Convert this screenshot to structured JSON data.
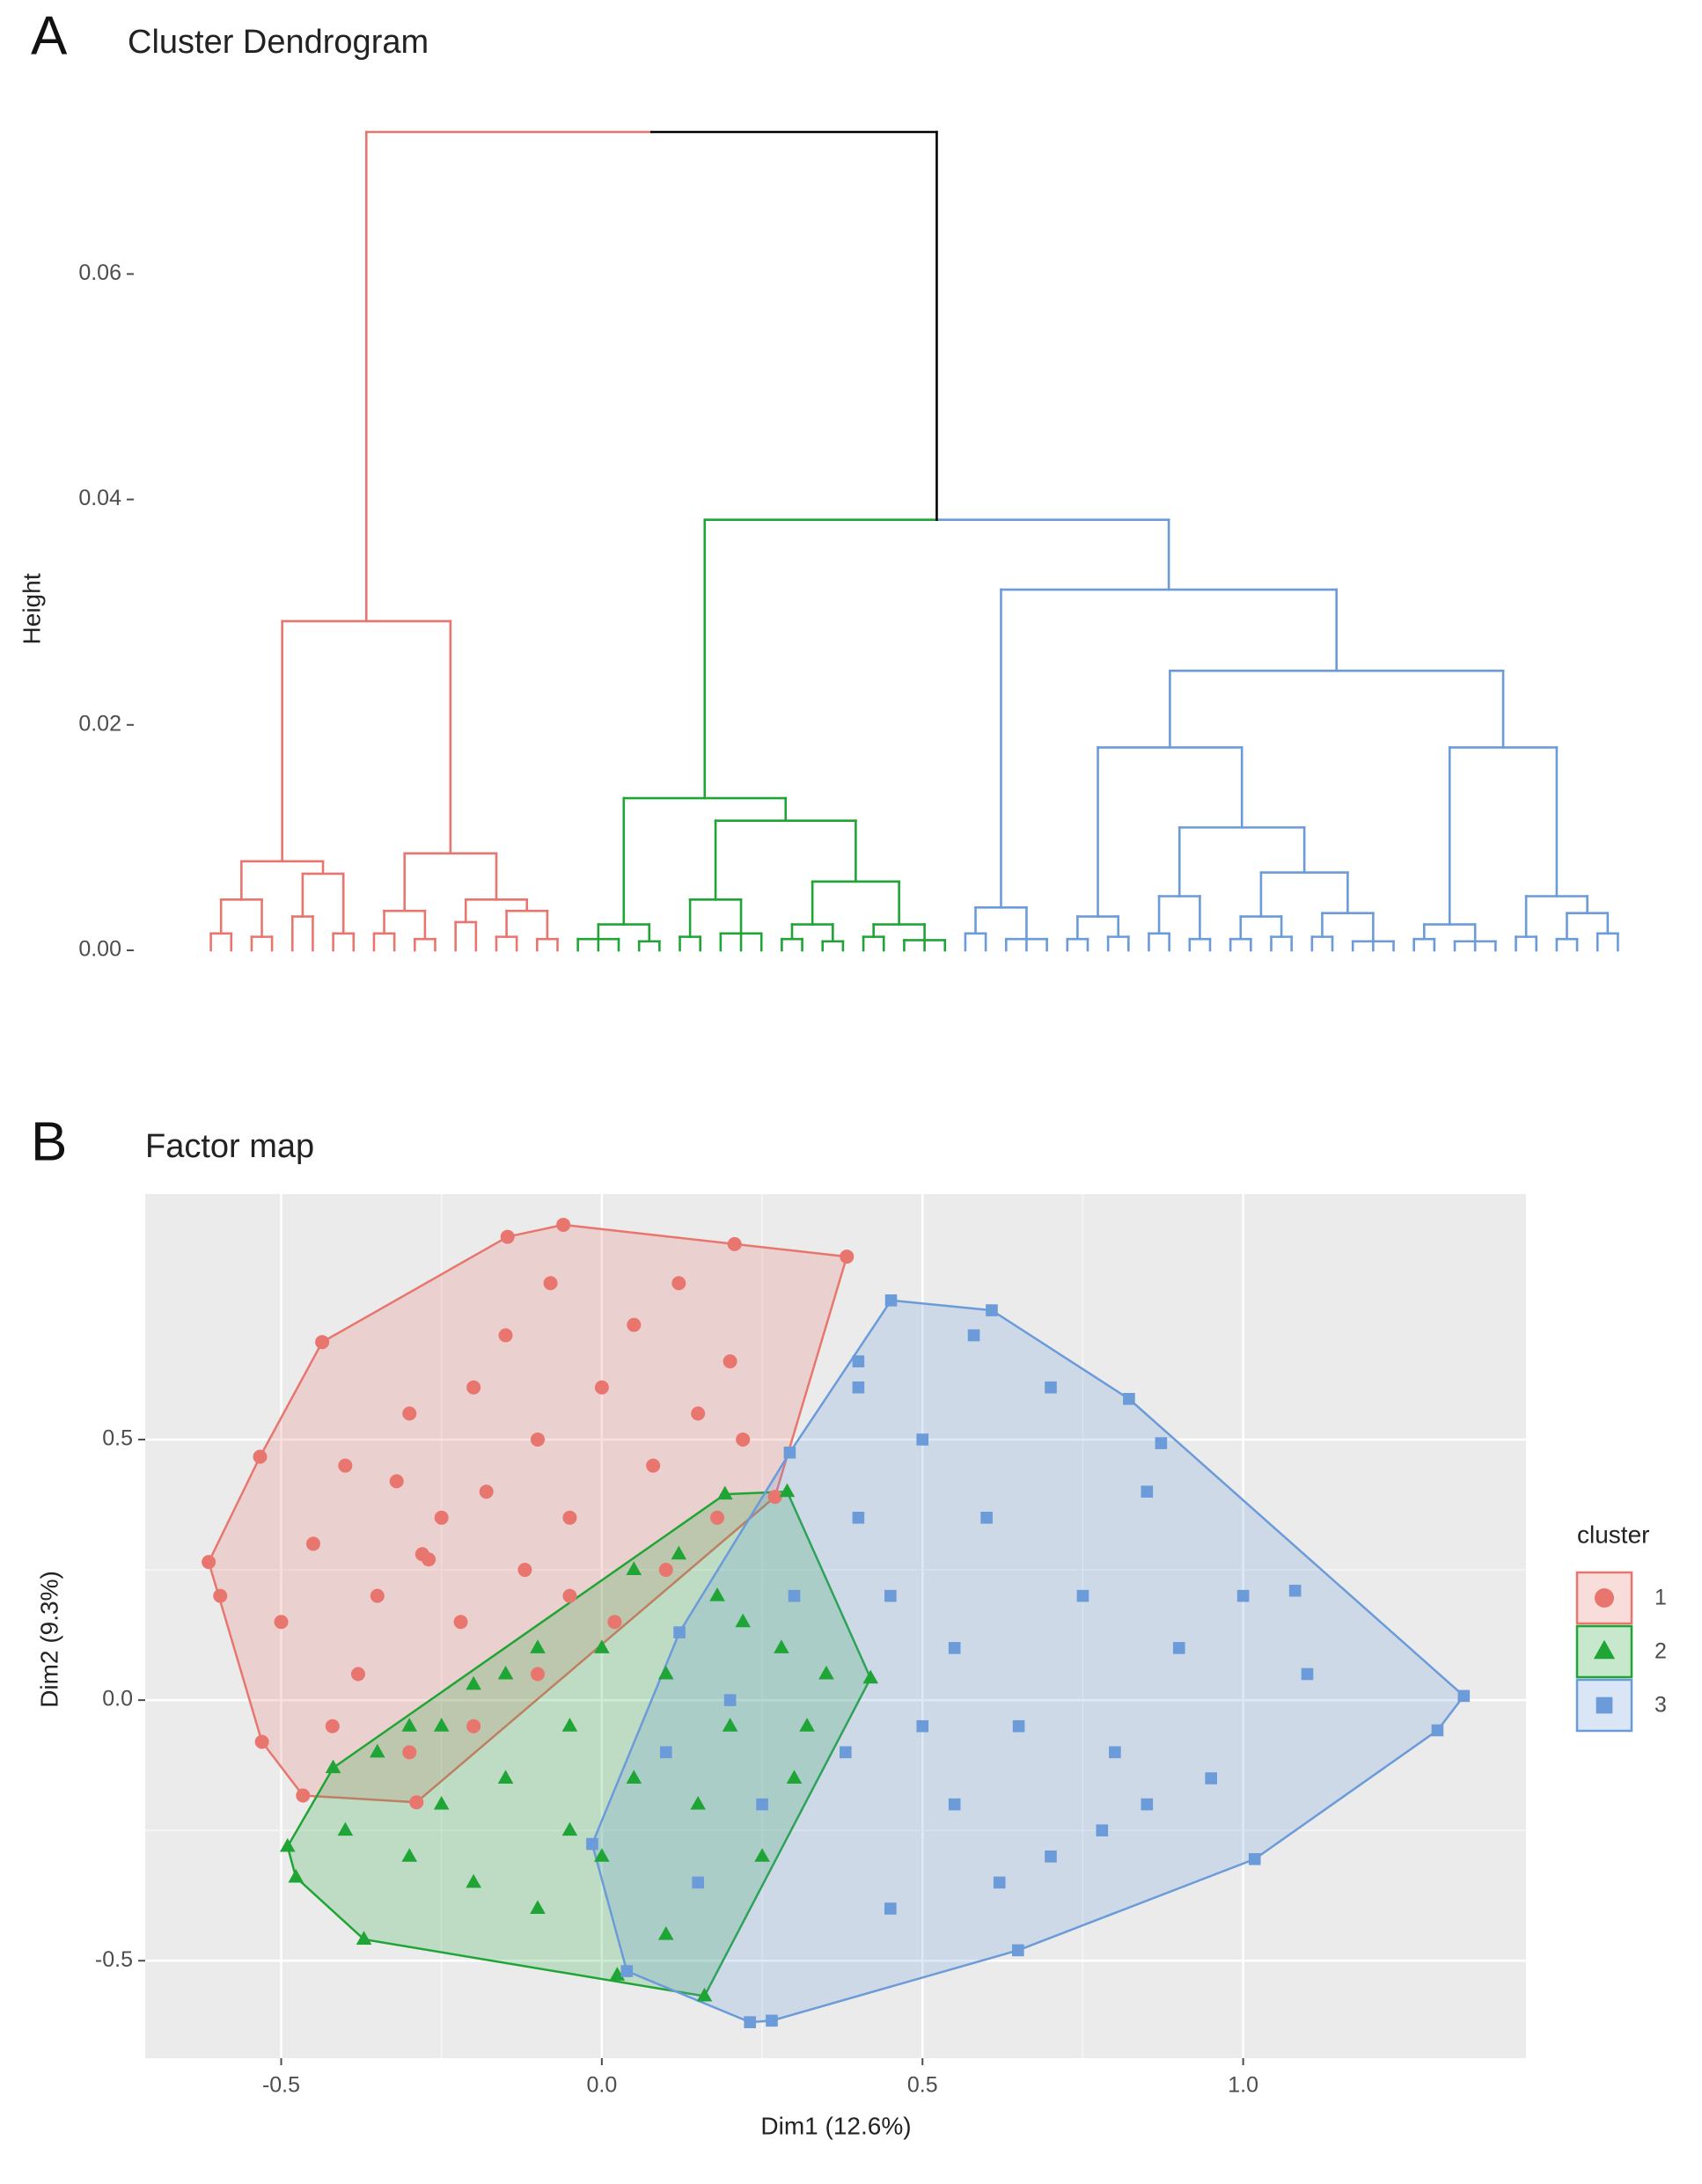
{
  "chart_data": [
    {
      "type": "dendrogram",
      "panel_label": "A",
      "title": "Cluster Dendrogram",
      "y_label": "Height",
      "ylim": [
        0,
        0.0726
      ],
      "yticks": [
        {
          "value": 0,
          "label": "0.00"
        },
        {
          "value": 0.02,
          "label": "0.02"
        },
        {
          "value": 0.04,
          "label": "0.04"
        },
        {
          "value": 0.06,
          "label": "0.06"
        }
      ],
      "merge_heights": [
        0.0726,
        0.0382
      ],
      "link_color": "#000000",
      "clusters": [
        {
          "color": "#e8766f",
          "tree": [
            0.0292,
            [
              0.0079,
              [
                0.0045,
                [
                  0.0015,
                  0,
                  0
                ],
                [
                  0.0012,
                  0,
                  0
                ]
              ],
              [
                0.0068,
                [
                  0.003,
                  0,
                  0
                ],
                [
                  0.0015,
                  0,
                  0
                ]
              ]
            ],
            [
              0.0086,
              [
                0.0035,
                [
                  0.0015,
                  0,
                  0
                ],
                [
                  0.001,
                  0,
                  0
                ]
              ],
              [
                0.0045,
                [
                  0.0025,
                  0,
                  0
                ],
                [
                  0.0035,
                  [
                    0.0012,
                    0,
                    0
                  ],
                  [
                    0.001,
                    0,
                    0
                  ]
                ]
              ]
            ]
          ]
        },
        {
          "color": "#1fa535",
          "tree": [
            0.0135,
            [
              0.0023,
              [
                0.001,
                0,
                0,
                0
              ],
              [
                0.0008,
                0,
                0
              ]
            ],
            [
              0.0115,
              [
                0.0045,
                [
                  0.0012,
                  0,
                  0
                ],
                [
                  0.0015,
                  0,
                  0,
                  0
                ]
              ],
              [
                0.0061,
                [
                  0.0023,
                  [
                    0.001,
                    0,
                    0
                  ],
                  [
                    0.0008,
                    0,
                    0
                  ]
                ],
                [
                  0.0023,
                  [
                    0.0012,
                    0,
                    0
                  ],
                  [
                    0.0009,
                    0,
                    0,
                    0
                  ]
                ]
              ]
            ]
          ]
        },
        {
          "color": "#6b9bd9",
          "tree": [
            0.032,
            [
              0.0038,
              [
                0.0015,
                0,
                0
              ],
              [
                0.001,
                0,
                0,
                0
              ]
            ],
            [
              0.0248,
              [
                0.018,
                [
                  0.003,
                  [
                    0.001,
                    0,
                    0
                  ],
                  [
                    0.0012,
                    0,
                    0
                  ]
                ],
                [
                  0.0109,
                  [
                    0.0048,
                    [
                      0.0015,
                      0,
                      0
                    ],
                    [
                      0.001,
                      0,
                      0
                    ]
                  ],
                  [
                    0.0069,
                    [
                      0.003,
                      [
                        0.001,
                        0,
                        0
                      ],
                      [
                        0.0012,
                        0,
                        0
                      ]
                    ],
                    [
                      0.0033,
                      [
                        0.0012,
                        0,
                        0
                      ],
                      [
                        0.0008,
                        0,
                        0,
                        0
                      ]
                    ]
                  ]
                ]
              ],
              [
                0.018,
                [
                  0.0023,
                  [
                    0.001,
                    0,
                    0
                  ],
                  [
                    0.0008,
                    0,
                    0,
                    0
                  ]
                ],
                [
                  0.0048,
                  [
                    0.0012,
                    0,
                    0
                  ],
                  [
                    0.0033,
                    [
                      0.001,
                      0,
                      0
                    ],
                    [
                      0.0015,
                      0,
                      0
                    ]
                  ]
                ]
              ]
            ]
          ]
        }
      ]
    },
    {
      "type": "scatter",
      "panel_label": "B",
      "title": "Factor map",
      "x_label": "Dim1 (12.6%)",
      "y_label": "Dim2 (9.3%)",
      "xlim": [
        -0.712,
        1.441
      ],
      "ylim": [
        -0.687,
        0.971
      ],
      "xticks": [
        -0.5,
        {
          "value": 0,
          "label": "0.0"
        },
        0.5,
        {
          "value": 1,
          "label": "1.0"
        }
      ],
      "yticks": [
        -0.5,
        {
          "value": 0,
          "label": "0.0"
        },
        0.5
      ],
      "grid": true,
      "legend_title": "cluster",
      "legend_position": "right",
      "series": [
        {
          "name": "1",
          "color": "#e8766f",
          "shape": "circle",
          "x": [
            -0.613,
            -0.533,
            -0.436,
            -0.147,
            -0.06,
            0.207,
            0.382,
            0.27,
            -0.289,
            -0.466,
            -0.53,
            -0.595,
            -0.45,
            -0.4,
            -0.35,
            -0.3,
            -0.28,
            -0.25,
            -0.22,
            -0.2,
            -0.18,
            -0.15,
            -0.12,
            -0.1,
            -0.08,
            -0.05,
            0,
            0.02,
            0.05,
            0.08,
            0.1,
            0.12,
            0.15,
            0.18,
            0.2,
            -0.38,
            -0.42,
            -0.3,
            -0.5,
            -0.2,
            -0.1,
            0.22,
            -0.32,
            -0.27,
            -0.05
          ],
          "values": [
            0.265,
            0.467,
            0.687,
            0.889,
            0.912,
            0.875,
            0.851,
            0.39,
            -0.196,
            -0.183,
            -0.08,
            0.2,
            0.3,
            0.45,
            0.2,
            0.55,
            0.28,
            0.35,
            0.15,
            0.6,
            0.4,
            0.7,
            0.25,
            0.5,
            0.8,
            0.35,
            0.6,
            0.15,
            0.72,
            0.45,
            0.25,
            0.8,
            0.55,
            0.35,
            0.65,
            0.05,
            -0.05,
            -0.1,
            0.15,
            -0.05,
            0.05,
            0.5,
            0.42,
            0.27,
            0.2
          ]
        },
        {
          "name": "2",
          "color": "#1fa535",
          "shape": "triangle",
          "x": [
            -0.49,
            -0.477,
            -0.371,
            0.024,
            0.16,
            0.419,
            0.289,
            0.192,
            -0.419,
            -0.4,
            -0.35,
            -0.3,
            -0.3,
            -0.25,
            -0.2,
            -0.2,
            -0.15,
            -0.1,
            -0.1,
            -0.05,
            0,
            0,
            0.05,
            0.1,
            0.1,
            0.15,
            0.18,
            0.2,
            0.25,
            0.28,
            0.3,
            0.35,
            0.05,
            -0.15,
            -0.25,
            0.12,
            -0.05,
            0.22,
            0.32
          ],
          "values": [
            -0.281,
            -0.34,
            -0.459,
            -0.528,
            -0.568,
            0.042,
            0.4,
            0.395,
            -0.13,
            -0.25,
            -0.1,
            -0.3,
            -0.05,
            -0.2,
            0.03,
            -0.35,
            -0.15,
            0.1,
            -0.4,
            -0.05,
            0.1,
            -0.3,
            -0.15,
            0.05,
            -0.45,
            -0.2,
            0.2,
            -0.05,
            -0.3,
            0.1,
            -0.15,
            0.05,
            0.25,
            0.05,
            -0.05,
            0.28,
            -0.25,
            0.15,
            -0.05
          ]
        },
        {
          "name": "3",
          "color": "#6b9bd9",
          "shape": "square",
          "x": [
            0.451,
            0.608,
            0.822,
            0.872,
            1.081,
            1.344,
            1.303,
            1.018,
            0.649,
            0.265,
            0.231,
            0.039,
            -0.015,
            0.121,
            0.293,
            0.2,
            0.25,
            0.3,
            0.4,
            0.4,
            0.45,
            0.5,
            0.55,
            0.55,
            0.6,
            0.65,
            0.7,
            0.7,
            0.75,
            0.8,
            0.85,
            0.9,
            0.95,
            1.0,
            1.1,
            0.5,
            0.45,
            0.62,
            0.38,
            0.15,
            0.1,
            0.4,
            0.78,
            0.85,
            0.58
          ],
          "values": [
            0.767,
            0.748,
            0.578,
            0.493,
            0.21,
            0.008,
            -0.058,
            -0.305,
            -0.48,
            -0.615,
            -0.618,
            -0.52,
            -0.276,
            0.13,
            0.475,
            0,
            -0.2,
            0.2,
            0.6,
            0.35,
            -0.4,
            0.5,
            0.1,
            -0.2,
            0.35,
            -0.05,
            0.6,
            -0.3,
            0.2,
            -0.1,
            0.4,
            0.1,
            -0.15,
            0.2,
            0.05,
            -0.05,
            0.2,
            -0.35,
            -0.1,
            -0.35,
            -0.1,
            0.65,
            -0.25,
            -0.2,
            0.7
          ]
        }
      ]
    }
  ]
}
